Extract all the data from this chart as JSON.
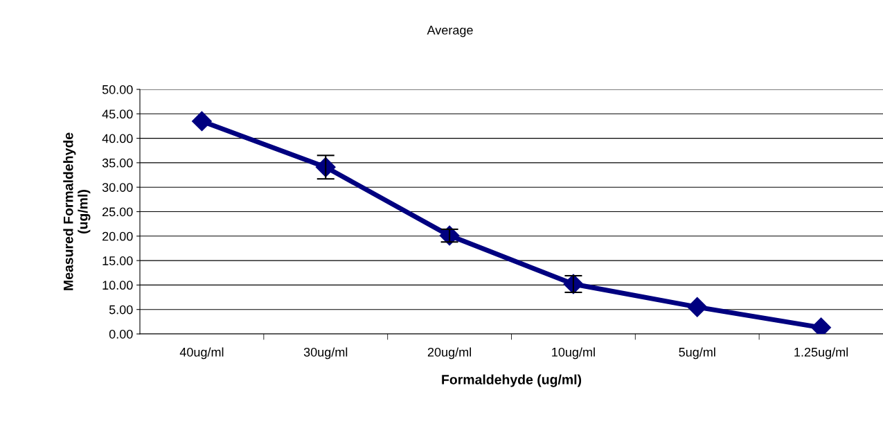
{
  "chart_data": {
    "type": "line",
    "title": "Average",
    "xlabel": "Formaldehyde (ug/ml)",
    "ylabel": "Measured Formaldehyde\n(ug/ml)",
    "categories": [
      "40ug/ml",
      "30ug/ml",
      "20ug/ml",
      "10ug/ml",
      "5ug/ml",
      "1.25ug/ml"
    ],
    "series": [
      {
        "color": "#000080",
        "values": [
          43.5,
          34.1,
          20.1,
          10.2,
          5.5,
          1.3
        ],
        "errors": [
          null,
          2.4,
          1.3,
          1.7,
          null,
          null
        ]
      }
    ],
    "ylim": [
      0,
      50
    ],
    "yticks": [
      {
        "value": 0,
        "label": "0.00"
      },
      {
        "value": 5,
        "label": "5.00"
      },
      {
        "value": 10,
        "label": "10.00"
      },
      {
        "value": 15,
        "label": "15.00"
      },
      {
        "value": 20,
        "label": "20.00"
      },
      {
        "value": 25,
        "label": "25.00"
      },
      {
        "value": 30,
        "label": "30.00"
      },
      {
        "value": 35,
        "label": "35.00"
      },
      {
        "value": 40,
        "label": "40.00"
      },
      {
        "value": 45,
        "label": "45.00"
      },
      {
        "value": 50,
        "label": "50.00"
      }
    ],
    "grid": "y",
    "marker": "diamond",
    "line_style": "solid",
    "legend": false
  }
}
